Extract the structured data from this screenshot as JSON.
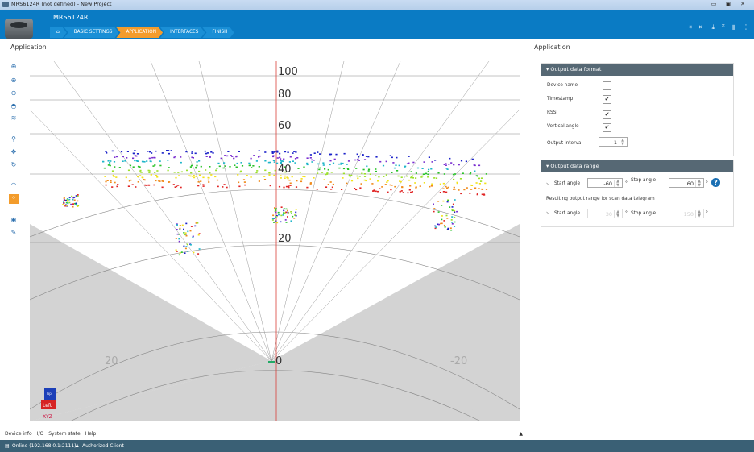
{
  "window": {
    "title": "MRS6124R (not defined) - New Project",
    "minimize": "▭",
    "maximize": "▣",
    "close": "✕"
  },
  "header": {
    "device_name": "MRS6124R",
    "home_icon": "home-icon",
    "crumbs": [
      "BASIC SETTINGS",
      "APPLICATION",
      "INTERFACES",
      "FINISH"
    ]
  },
  "left_panel": {
    "title": "Application"
  },
  "right_panel": {
    "title": "Application"
  },
  "viewer": {
    "distance_labels": [
      "100",
      "80",
      "60",
      "40",
      "20",
      "0"
    ],
    "angle_labels": [
      "20",
      "-20"
    ],
    "axis_labels": {
      "top": "Top",
      "left": "Left",
      "xyz": "XYZ"
    }
  },
  "bottom_tabs": [
    "Device info",
    "I/O",
    "System state",
    "Help"
  ],
  "status": {
    "connection": "Online (192.168.0.1:2111)",
    "user": "Authorized Client"
  },
  "output_format": {
    "title": "Output data format",
    "device_name_label": "Device name",
    "device_name_checked": false,
    "timestamp_label": "Timestamp",
    "timestamp_checked": true,
    "rssi_label": "RSSI",
    "rssi_checked": true,
    "vertical_angle_label": "Vertical angle",
    "vertical_angle_checked": true,
    "output_interval_label": "Output interval",
    "output_interval_value": "1"
  },
  "output_range": {
    "title": "Output data range",
    "start_angle_label": "Start angle",
    "start_angle_value": "-60",
    "stop_angle_label": "Stop angle",
    "stop_angle_value": "60",
    "degree": "°",
    "resulting_label": "Resulting output range for scan data telegram",
    "res_start_label": "Start angle",
    "res_start_value": "30",
    "res_stop_label": "Stop angle",
    "res_stop_value": "150"
  }
}
